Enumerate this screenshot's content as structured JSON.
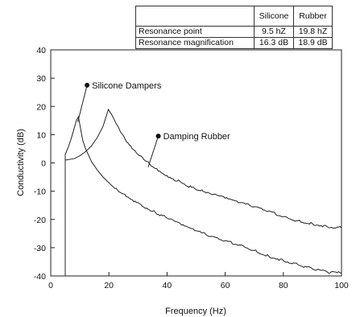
{
  "table": {
    "headers": [
      "",
      "Silicone",
      "Rubber"
    ],
    "rows": [
      [
        "Resonance point",
        "9.5 hZ",
        "19.8 hZ"
      ],
      [
        "Resonance magnification",
        "16.3 dB",
        "18.9 dB"
      ]
    ]
  },
  "chart_data": {
    "type": "line",
    "title": "",
    "xlabel": "Frequency (Hz)",
    "ylabel": "Conductivity (dB)",
    "xlim": [
      0,
      100
    ],
    "ylim": [
      -40,
      40
    ],
    "xticks": [
      0,
      20,
      40,
      60,
      80,
      100
    ],
    "yticks": [
      -40,
      -30,
      -20,
      -10,
      0,
      10,
      20,
      30,
      40
    ],
    "grid": false,
    "annotations": [
      {
        "text": "Silicone Dampers",
        "series": "silicone",
        "point": [
          12.5,
          27.5
        ]
      },
      {
        "text": "Damping Rubber",
        "series": "rubber",
        "point": [
          37,
          9.5
        ]
      }
    ],
    "series": [
      {
        "id": "silicone",
        "x": [
          5,
          5,
          6,
          7,
          8,
          8.8,
          9.5,
          10.2,
          11,
          12,
          14,
          16,
          18,
          20,
          22,
          25,
          28,
          30,
          33,
          36,
          40,
          45,
          50,
          55,
          60,
          65,
          70,
          75,
          80,
          85,
          90,
          95,
          100
        ],
        "y": [
          -40,
          3,
          5.5,
          8.5,
          12,
          15,
          16.3,
          12.5,
          8,
          5,
          0.5,
          -2.5,
          -5,
          -7,
          -9,
          -11,
          -13,
          -14,
          -16,
          -17.5,
          -19.5,
          -22,
          -24,
          -26,
          -27.5,
          -29,
          -31,
          -33,
          -34.5,
          -36,
          -37.5,
          -38.5,
          -39
        ]
      },
      {
        "id": "rubber",
        "x": [
          5,
          8,
          10,
          12,
          14,
          16,
          18,
          19.8,
          21,
          22,
          24,
          26,
          28,
          30,
          33,
          36,
          40,
          45,
          50,
          52,
          55,
          60,
          65,
          70,
          75,
          80,
          85,
          90,
          95,
          100
        ],
        "y": [
          1,
          1.5,
          2.5,
          4,
          6,
          9,
          13,
          18.9,
          17,
          15,
          11,
          7.5,
          5,
          3,
          0.5,
          -2,
          -4.5,
          -7,
          -9.5,
          -9.5,
          -11,
          -12.5,
          -14,
          -15.5,
          -17,
          -19,
          -20.5,
          -21.5,
          -22.5,
          -23
        ]
      }
    ]
  }
}
